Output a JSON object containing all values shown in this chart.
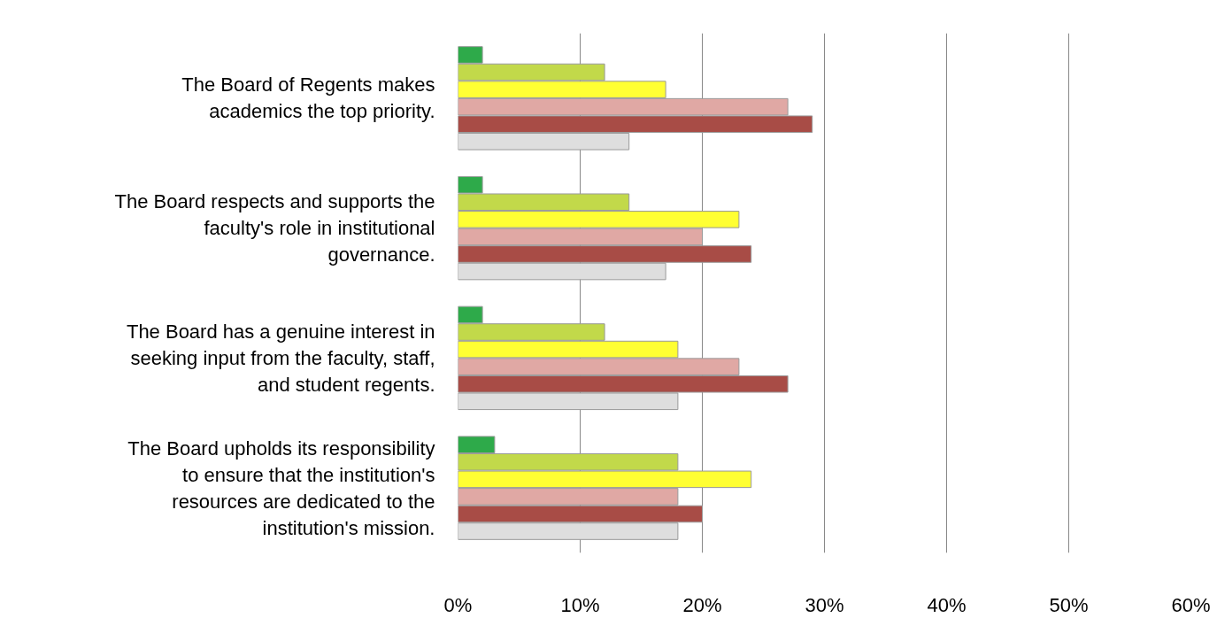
{
  "chart_data": {
    "type": "bar",
    "orientation": "horizontal",
    "categories": [
      "The Board of Regents makes\nacademics the top priority.",
      "The Board respects and supports the\nfaculty's role in institutional\ngovernance.",
      "The Board has a genuine interest in\nseeking input from the faculty, staff,\nand student regents.",
      "The Board upholds its responsibility\nto ensure that the institution's\nresources are dedicated to the\ninstitution's mission."
    ],
    "series": [
      {
        "color": "#2eaa4a",
        "values": [
          2,
          2,
          2,
          3
        ]
      },
      {
        "color": "#c2d94a",
        "values": [
          12,
          14,
          12,
          18
        ]
      },
      {
        "color": "#ffff33",
        "values": [
          17,
          23,
          18,
          24
        ]
      },
      {
        "color": "#e0a8a4",
        "values": [
          27,
          20,
          23,
          18
        ]
      },
      {
        "color": "#a84c46",
        "values": [
          29,
          24,
          27,
          20
        ]
      },
      {
        "color": "#dedede",
        "values": [
          14,
          17,
          18,
          18
        ]
      }
    ],
    "xlim": [
      0,
      60
    ],
    "xticks": [
      {
        "value": 0,
        "label": "0%"
      },
      {
        "value": 10,
        "label": "10%"
      },
      {
        "value": 20,
        "label": "20%"
      },
      {
        "value": 30,
        "label": "30%"
      },
      {
        "value": 40,
        "label": "40%"
      },
      {
        "value": 50,
        "label": "50%"
      },
      {
        "value": 60,
        "label": "60%"
      }
    ],
    "grid": "x"
  }
}
